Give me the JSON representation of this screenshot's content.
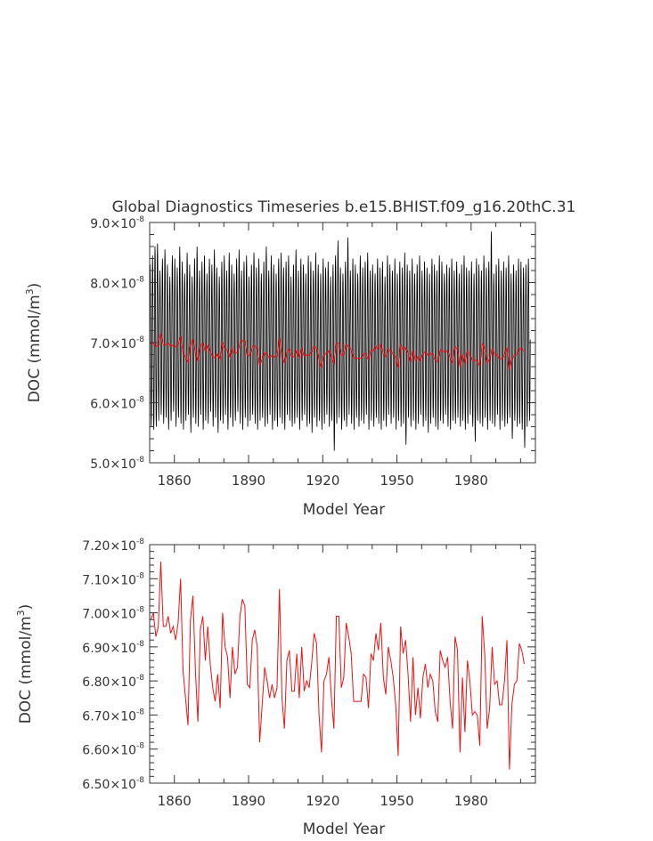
{
  "title": "Global Diagnostics Timeseries b.e15.BHIST.f09_g16.20thC.31",
  "colors": {
    "monthly": "#000000",
    "annual": "#ee1111",
    "axis": "#333333"
  },
  "chart_data": [
    {
      "type": "line",
      "xlabel": "Model Year",
      "ylabel_main": "DOC (mmol/m",
      "ylabel_sup": "3",
      "ylabel_end": ")",
      "xlim": [
        1850,
        2006
      ],
      "ylim": [
        5.0,
        9.0
      ],
      "x_ticks": [
        1860,
        1890,
        1920,
        1950,
        1980
      ],
      "y_ticks": [
        5.0,
        6.0,
        7.0,
        8.0,
        9.0
      ],
      "y_tick_labels": [
        "5.0×10",
        "6.0×10",
        "7.0×10",
        "8.0×10",
        "9.0×10"
      ],
      "tick_exponent": "-8",
      "series": [
        {
          "kind": "monthly-seasonal-cycle",
          "note_values": "monthly DOC x 1e-8; each year oscillates between an annual minimum and maximum",
          "years": [
            1850,
            1851,
            1852,
            1853,
            1854,
            1855,
            1856,
            1857,
            1858,
            1859,
            1860,
            1861,
            1862,
            1863,
            1864,
            1865,
            1866,
            1867,
            1868,
            1869,
            1870,
            1871,
            1872,
            1873,
            1874,
            1875,
            1876,
            1877,
            1878,
            1879,
            1880,
            1881,
            1882,
            1883,
            1884,
            1885,
            1886,
            1887,
            1888,
            1889,
            1890,
            1891,
            1892,
            1893,
            1894,
            1895,
            1896,
            1897,
            1898,
            1899,
            1900,
            1901,
            1902,
            1903,
            1904,
            1905,
            1906,
            1907,
            1908,
            1909,
            1910,
            1911,
            1912,
            1913,
            1914,
            1915,
            1916,
            1917,
            1918,
            1919,
            1920,
            1921,
            1922,
            1923,
            1924,
            1925,
            1926,
            1927,
            1928,
            1929,
            1930,
            1931,
            1932,
            1933,
            1934,
            1935,
            1936,
            1937,
            1938,
            1939,
            1940,
            1941,
            1942,
            1943,
            1944,
            1945,
            1946,
            1947,
            1948,
            1949,
            1950,
            1951,
            1952,
            1953,
            1954,
            1955,
            1956,
            1957,
            1958,
            1959,
            1960,
            1961,
            1962,
            1963,
            1964,
            1965,
            1966,
            1967,
            1968,
            1969,
            1970,
            1971,
            1972,
            1973,
            1974,
            1975,
            1976,
            1977,
            1978,
            1979,
            1980,
            1981,
            1982,
            1983,
            1984,
            1985,
            1986,
            1987,
            1988,
            1989,
            1990,
            1991,
            1992,
            1993,
            1994,
            1995,
            1996,
            1997,
            1998,
            1999,
            2000,
            2001,
            2002,
            2003,
            2004,
            2005
          ],
          "annual_max": [
            8.3,
            8.45,
            8.6,
            8.65,
            8.2,
            8.4,
            8.55,
            8.3,
            8.1,
            8.45,
            8.4,
            8.25,
            8.6,
            8.35,
            8.15,
            8.5,
            8.3,
            8.1,
            8.4,
            8.6,
            8.2,
            8.35,
            8.45,
            8.15,
            8.4,
            8.3,
            8.55,
            8.25,
            8.1,
            8.35,
            8.45,
            8.2,
            8.5,
            8.3,
            8.15,
            8.4,
            8.55,
            8.2,
            8.35,
            8.45,
            8.1,
            8.3,
            8.5,
            8.25,
            8.4,
            8.15,
            8.35,
            8.6,
            8.2,
            8.45,
            8.3,
            8.15,
            8.4,
            8.5,
            8.25,
            8.35,
            8.45,
            8.1,
            8.3,
            8.55,
            8.2,
            8.4,
            8.3,
            8.15,
            8.45,
            8.35,
            8.2,
            8.5,
            8.3,
            8.15,
            8.4,
            8.25,
            8.35,
            8.1,
            8.3,
            8.45,
            8.7,
            8.25,
            8.15,
            8.35,
            8.75,
            8.2,
            8.4,
            8.3,
            8.15,
            8.45,
            8.25,
            8.35,
            8.5,
            8.2,
            8.3,
            8.15,
            8.4,
            8.25,
            8.35,
            8.1,
            8.45,
            8.3,
            8.2,
            8.4,
            8.15,
            8.35,
            8.25,
            8.5,
            8.3,
            8.2,
            8.4,
            8.15,
            8.3,
            8.45,
            8.2,
            8.35,
            8.25,
            8.15,
            8.4,
            8.3,
            8.2,
            8.45,
            8.35,
            8.15,
            8.3,
            8.25,
            8.4,
            8.2,
            8.35,
            8.15,
            8.3,
            8.45,
            8.25,
            8.2,
            8.35,
            8.15,
            8.4,
            8.3,
            8.2,
            8.45,
            8.25,
            8.35,
            8.85,
            8.15,
            8.3,
            8.4,
            8.2,
            8.35,
            8.25,
            8.45,
            8.15,
            8.3,
            8.2,
            8.4,
            8.35,
            8.25,
            8.3,
            8.4
          ],
          "annual_min": [
            5.6,
            5.55,
            5.6,
            5.7,
            5.8,
            5.65,
            5.75,
            5.55,
            5.7,
            5.85,
            5.6,
            5.75,
            5.65,
            5.55,
            5.7,
            5.8,
            5.5,
            5.75,
            5.65,
            5.6,
            5.8,
            5.55,
            5.7,
            5.65,
            5.85,
            5.6,
            5.75,
            5.5,
            5.7,
            5.65,
            5.8,
            5.55,
            5.75,
            5.6,
            5.7,
            5.85,
            5.65,
            5.55,
            5.75,
            5.6,
            5.7,
            5.8,
            5.65,
            5.55,
            5.7,
            5.75,
            5.6,
            5.65,
            5.8,
            5.55,
            5.7,
            5.6,
            5.75,
            5.65,
            5.55,
            5.8,
            5.7,
            5.6,
            5.65,
            5.75,
            5.55,
            5.7,
            5.8,
            5.6,
            5.65,
            5.5,
            5.75,
            5.6,
            5.7,
            5.55,
            5.65,
            5.8,
            5.6,
            5.7,
            5.2,
            5.65,
            5.75,
            5.55,
            5.7,
            5.6,
            5.8,
            5.65,
            5.55,
            5.75,
            5.6,
            5.7,
            5.65,
            5.8,
            5.55,
            5.7,
            5.6,
            5.75,
            5.65,
            5.55,
            5.7,
            5.6,
            5.8,
            5.65,
            5.75,
            5.55,
            5.7,
            5.6,
            5.65,
            5.3,
            5.75,
            5.6,
            5.7,
            5.55,
            5.65,
            5.8,
            5.6,
            5.7,
            5.5,
            5.65,
            5.75,
            5.6,
            5.55,
            5.7,
            5.65,
            5.8,
            5.6,
            5.55,
            5.7,
            5.65,
            5.75,
            5.6,
            5.7,
            5.55,
            5.65,
            5.8,
            5.6,
            5.35,
            5.7,
            5.65,
            5.6,
            5.75,
            5.55,
            5.7,
            5.65,
            5.6,
            5.8,
            5.55,
            5.7,
            5.6,
            5.65,
            5.75,
            5.4,
            5.7,
            5.6,
            5.65,
            5.55,
            5.25,
            5.6,
            5.7,
            5.45,
            5.65
          ]
        },
        {
          "kind": "annual-mean",
          "values_ref": "annual"
        }
      ]
    },
    {
      "type": "line",
      "xlabel": "Model Year",
      "ylabel_main": "DOC (mmol/m",
      "ylabel_sup": "3",
      "ylabel_end": ")",
      "xlim": [
        1850,
        2006
      ],
      "ylim": [
        6.5,
        7.2
      ],
      "x_ticks": [
        1860,
        1890,
        1920,
        1950,
        1980
      ],
      "y_ticks": [
        6.5,
        6.6,
        6.7,
        6.8,
        6.9,
        7.0,
        7.1,
        7.2
      ],
      "y_tick_labels": [
        "6.50×10",
        "6.60×10",
        "6.70×10",
        "6.80×10",
        "6.90×10",
        "7.00×10",
        "7.10×10",
        "7.20×10"
      ],
      "tick_exponent": "-8",
      "annual_years_start": 1850,
      "annual": [
        6.98,
        7.0,
        6.93,
        6.96,
        7.15,
        6.96,
        6.96,
        6.99,
        6.94,
        6.96,
        6.92,
        6.97,
        7.1,
        6.83,
        6.75,
        6.67,
        6.98,
        7.05,
        6.83,
        6.68,
        6.95,
        6.99,
        6.86,
        6.96,
        6.85,
        6.78,
        6.74,
        6.82,
        6.72,
        7.0,
        6.9,
        6.87,
        6.75,
        6.9,
        6.82,
        6.84,
        6.99,
        7.04,
        7.02,
        6.79,
        6.78,
        6.92,
        6.95,
        6.9,
        6.62,
        6.73,
        6.84,
        6.8,
        6.75,
        6.79,
        6.75,
        6.78,
        7.07,
        6.75,
        6.66,
        6.86,
        6.89,
        6.77,
        6.77,
        6.88,
        6.75,
        6.9,
        6.77,
        6.8,
        6.78,
        6.85,
        6.94,
        6.91,
        6.7,
        6.59,
        6.8,
        6.82,
        6.87,
        6.75,
        6.66,
        6.99,
        6.99,
        6.78,
        6.81,
        6.97,
        6.93,
        6.88,
        6.74,
        6.74,
        6.74,
        6.74,
        6.82,
        6.81,
        6.72,
        6.88,
        6.86,
        6.94,
        6.89,
        6.97,
        6.81,
        6.76,
        6.9,
        6.86,
        6.81,
        6.73,
        6.58,
        6.96,
        6.88,
        6.92,
        6.82,
        6.68,
        6.87,
        6.7,
        6.78,
        6.69,
        6.81,
        6.85,
        6.78,
        6.82,
        6.8,
        6.71,
        6.68,
        6.89,
        6.86,
        6.84,
        6.87,
        6.74,
        6.66,
        6.93,
        6.89,
        6.59,
        6.81,
        6.65,
        6.86,
        6.8,
        6.7,
        6.71,
        6.7,
        6.61,
        6.99,
        6.88,
        6.66,
        6.72,
        6.9,
        6.79,
        6.8,
        6.73,
        6.73,
        6.8,
        6.92,
        6.54,
        6.73,
        6.79,
        6.8,
        6.91,
        6.89,
        6.85
      ]
    }
  ]
}
